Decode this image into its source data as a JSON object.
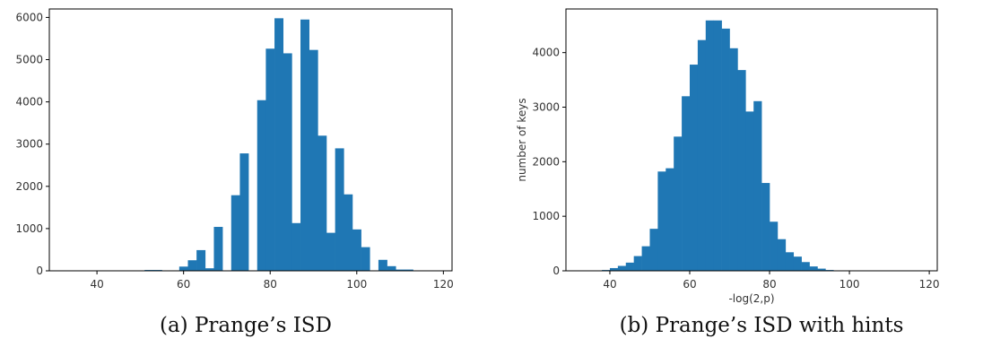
{
  "chart_data": [
    {
      "type": "bar",
      "caption": "(a) Prange’s ISD",
      "xlabel": "",
      "ylabel": "",
      "xlim": [
        29,
        122
      ],
      "ylim": [
        0,
        6200
      ],
      "xticks": [
        40,
        60,
        80,
        100,
        120
      ],
      "yticks": [
        0,
        1000,
        2000,
        3000,
        4000,
        5000,
        6000
      ],
      "bin_width": 2,
      "bins": [
        {
          "x0": 51,
          "value": 20
        },
        {
          "x0": 53,
          "value": 20
        },
        {
          "x0": 59,
          "value": 100
        },
        {
          "x0": 61,
          "value": 250
        },
        {
          "x0": 63,
          "value": 490
        },
        {
          "x0": 65,
          "value": 60
        },
        {
          "x0": 67,
          "value": 1040
        },
        {
          "x0": 71,
          "value": 1790
        },
        {
          "x0": 73,
          "value": 2780
        },
        {
          "x0": 77,
          "value": 4040
        },
        {
          "x0": 79,
          "value": 5260
        },
        {
          "x0": 81,
          "value": 5980
        },
        {
          "x0": 83,
          "value": 5150
        },
        {
          "x0": 85,
          "value": 1130
        },
        {
          "x0": 87,
          "value": 5950
        },
        {
          "x0": 89,
          "value": 5230
        },
        {
          "x0": 91,
          "value": 3200
        },
        {
          "x0": 93,
          "value": 900
        },
        {
          "x0": 95,
          "value": 2900
        },
        {
          "x0": 97,
          "value": 1810
        },
        {
          "x0": 99,
          "value": 980
        },
        {
          "x0": 101,
          "value": 560
        },
        {
          "x0": 105,
          "value": 260
        },
        {
          "x0": 107,
          "value": 110
        },
        {
          "x0": 109,
          "value": 30
        },
        {
          "x0": 111,
          "value": 30
        }
      ],
      "color": "#1f77b4"
    },
    {
      "type": "bar",
      "caption": "(b) Prange’s ISD with hints",
      "xlabel": "-log(2,p)",
      "ylabel": "number of keys",
      "xlim": [
        29,
        122
      ],
      "ylim": [
        0,
        4800
      ],
      "xticks": [
        40,
        60,
        80,
        100,
        120
      ],
      "yticks": [
        0,
        1000,
        2000,
        3000,
        4000
      ],
      "bin_width": 2,
      "bins": [
        {
          "x0": 38,
          "value": 15
        },
        {
          "x0": 40,
          "value": 50
        },
        {
          "x0": 42,
          "value": 90
        },
        {
          "x0": 44,
          "value": 150
        },
        {
          "x0": 46,
          "value": 270
        },
        {
          "x0": 48,
          "value": 450
        },
        {
          "x0": 50,
          "value": 770
        },
        {
          "x0": 52,
          "value": 1820
        },
        {
          "x0": 54,
          "value": 1880
        },
        {
          "x0": 56,
          "value": 2460
        },
        {
          "x0": 58,
          "value": 3200
        },
        {
          "x0": 60,
          "value": 3780
        },
        {
          "x0": 62,
          "value": 4230
        },
        {
          "x0": 64,
          "value": 4590
        },
        {
          "x0": 66,
          "value": 4590
        },
        {
          "x0": 68,
          "value": 4440
        },
        {
          "x0": 70,
          "value": 4080
        },
        {
          "x0": 72,
          "value": 3680
        },
        {
          "x0": 74,
          "value": 2920
        },
        {
          "x0": 76,
          "value": 3110
        },
        {
          "x0": 78,
          "value": 1610
        },
        {
          "x0": 80,
          "value": 900
        },
        {
          "x0": 82,
          "value": 580
        },
        {
          "x0": 84,
          "value": 340
        },
        {
          "x0": 86,
          "value": 260
        },
        {
          "x0": 88,
          "value": 160
        },
        {
          "x0": 90,
          "value": 80
        },
        {
          "x0": 92,
          "value": 40
        },
        {
          "x0": 94,
          "value": 15
        }
      ],
      "color": "#1f77b4"
    }
  ]
}
